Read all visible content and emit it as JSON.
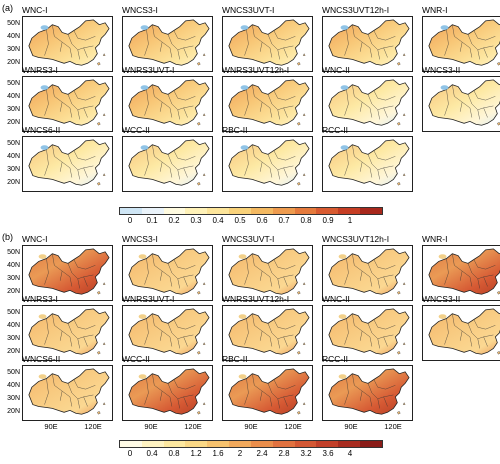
{
  "figure": {
    "part_a": {
      "label": "(a)",
      "maps": [
        "WNC-I",
        "WNCS3-I",
        "WNCS3UVT-I",
        "WNCS3UVT12h-I",
        "WNR-I",
        "WNRS3-I",
        "WNRS3UVT-I",
        "WNRS3UVT12h-I",
        "WNC-II",
        "WNCS3-II",
        "WNCS6-II",
        "WCC-II",
        "RBC-II",
        "RCC-II"
      ],
      "colorbar_ticks": [
        "0",
        "0.1",
        "0.2",
        "0.3",
        "0.4",
        "0.5",
        "0.6",
        "0.7",
        "0.8",
        "0.9",
        "1"
      ],
      "colorbar_colors": [
        "#cfe6f5",
        "#eaf3fa",
        "#fffbe0",
        "#fff2b8",
        "#fde59a",
        "#f9d27a",
        "#f4b961",
        "#ee9b4e",
        "#e57a3c",
        "#d85a30",
        "#c63e24",
        "#a8281c"
      ]
    },
    "part_b": {
      "label": "(b)",
      "maps": [
        "WNC-I",
        "WNCS3-I",
        "WNCS3UVT-I",
        "WNCS3UVT12h-I",
        "WNR-I",
        "WNRS3-I",
        "WNRS3UVT-I",
        "WNRS3UVT12h-I",
        "WNC-II",
        "WNCS3-II",
        "WNCS6-II",
        "WCC-II",
        "RBC-II",
        "RCC-II"
      ],
      "colorbar_ticks": [
        "0",
        "0.4",
        "0.8",
        "1.2",
        "1.6",
        "2",
        "2.4",
        "2.8",
        "3.2",
        "3.6",
        "4"
      ],
      "colorbar_colors": [
        "#fffbe6",
        "#fff3c2",
        "#fde8a0",
        "#fad886",
        "#f6c26e",
        "#f1a95c",
        "#ea8e4c",
        "#e17240",
        "#d45834",
        "#c2402a",
        "#a82c20",
        "#8a1c18"
      ]
    },
    "lat_labels": [
      "50N",
      "40N",
      "30N",
      "20N"
    ],
    "lon_labels": [
      "90E",
      "120E"
    ]
  }
}
